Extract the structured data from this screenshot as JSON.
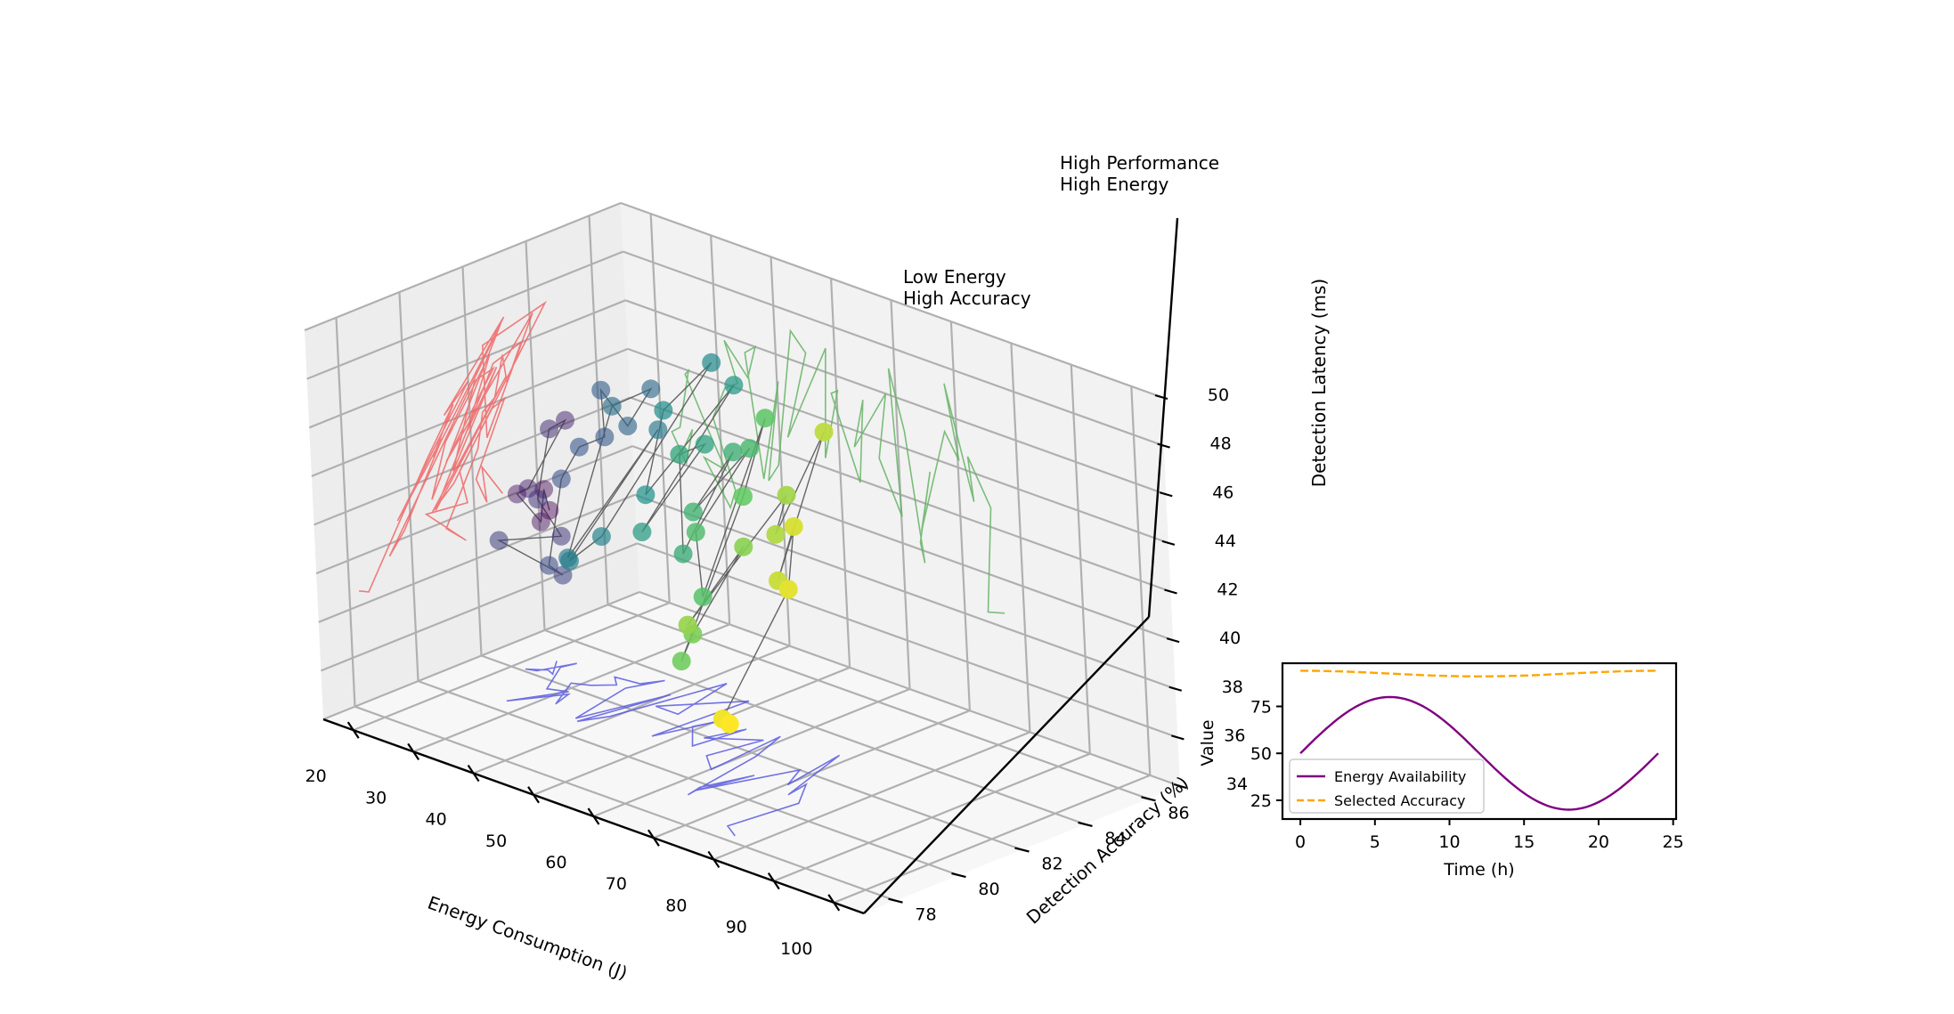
{
  "chart_data": [
    {
      "type": "scatter3d",
      "xlabel": "Energy Consumption (J)",
      "ylabel": "Detection Accuracy (%)",
      "zlabel": "Detection Latency (ms)",
      "xlim": [
        15,
        105
      ],
      "ylim": [
        77,
        87
      ],
      "zlim": [
        34,
        50
      ],
      "xticks": [
        "20",
        "30",
        "40",
        "50",
        "60",
        "70",
        "80",
        "90",
        "100"
      ],
      "yticks": [
        "78",
        "80",
        "82",
        "84",
        "86"
      ],
      "zticks": [
        "34",
        "36",
        "38",
        "40",
        "42",
        "44",
        "46",
        "48",
        "50"
      ],
      "grid": true,
      "colormap": "viridis",
      "trajectory_line_color": "#555555",
      "projection_colors": {
        "xy_floor": "#5a5ae0",
        "xz_wall": "#66b366",
        "yz_wall": "#ee6666"
      },
      "annotations": [
        {
          "line1": "High Performance",
          "line2": "High Energy"
        },
        {
          "line1": "Low Energy",
          "line2": "High Accuracy"
        }
      ],
      "points": {
        "x": [
          22.8,
          25.3,
          24.0,
          21.8,
          23.2,
          25.1,
          24.5,
          28.0,
          30.6,
          27.1,
          31.1,
          32.1,
          28.9,
          31.1,
          33.3,
          31.4,
          35.1,
          36.6,
          34.8,
          37.0,
          40.2,
          37.8,
          39.6,
          42.7,
          45.1,
          41.4,
          48.5,
          47.6,
          50.2,
          49.1,
          53.3,
          54.4,
          52.6,
          58.3,
          56.7,
          60.1,
          59.0,
          61.2,
          63.6,
          63.0,
          65.2,
          63.3,
          68.0,
          70.2,
          68.3,
          72.4,
          71.7,
          75.2,
          73.9,
          76.7
        ],
        "y": [
          82.9,
          82.3,
          82.4,
          82.1,
          82.2,
          83.1,
          82.7,
          81.6,
          81.8,
          80.5,
          81.7,
          81.1,
          82.2,
          82.4,
          82.8,
          83.1,
          83.2,
          83.7,
          82.8,
          80.8,
          83.2,
          80.7,
          81.4,
          84.5,
          82.5,
          82.5,
          84.1,
          81.2,
          82.8,
          82.2,
          81.4,
          82.9,
          81.9,
          82.7,
          81.2,
          80.7,
          83.1,
          81.9,
          79.3,
          79.8,
          81.1,
          79.6,
          82.0,
          81.2,
          83.2,
          80.8,
          81.5,
          80.6,
          78.6,
          78.3
        ],
        "z": [
          40.2,
          41.6,
          40.1,
          41.2,
          41.5,
          44.0,
          43.8,
          41.8,
          40.4,
          40.6,
          38.9,
          39.7,
          42.4,
          43.8,
          44.2,
          45.8,
          44.6,
          46.0,
          45.6,
          40.6,
          44.9,
          40.6,
          41.4,
          47.2,
          46.5,
          42.7,
          47.0,
          42.4,
          45.4,
          45.2,
          41.9,
          45.4,
          43.3,
          46.0,
          43.2,
          41.1,
          47.1,
          44.7,
          39.5,
          40.3,
          43.4,
          40.8,
          45.3,
          44.3,
          47.3,
          42.8,
          44.6,
          42.8,
          38.4,
          38.6
        ]
      }
    },
    {
      "type": "line",
      "xlabel": "Time (h)",
      "ylabel": "Value",
      "xlim": [
        -1.2,
        25.2
      ],
      "ylim": [
        15,
        98
      ],
      "xticks": [
        0,
        5,
        10,
        15,
        20,
        25
      ],
      "yticks": [
        25,
        50,
        75
      ],
      "legend": "lower-left",
      "series": [
        {
          "name": "Energy Availability",
          "color": "#800080",
          "dash": "solid",
          "fn": "50+30*sin(2*pi*t/24)",
          "range": [
            0,
            24
          ]
        },
        {
          "name": "Selected Accuracy",
          "color": "#ffa500",
          "dash": "dashed",
          "fn": "92.5+1.5*cos(2*pi*t/24)",
          "range": [
            0,
            24
          ]
        }
      ]
    }
  ]
}
